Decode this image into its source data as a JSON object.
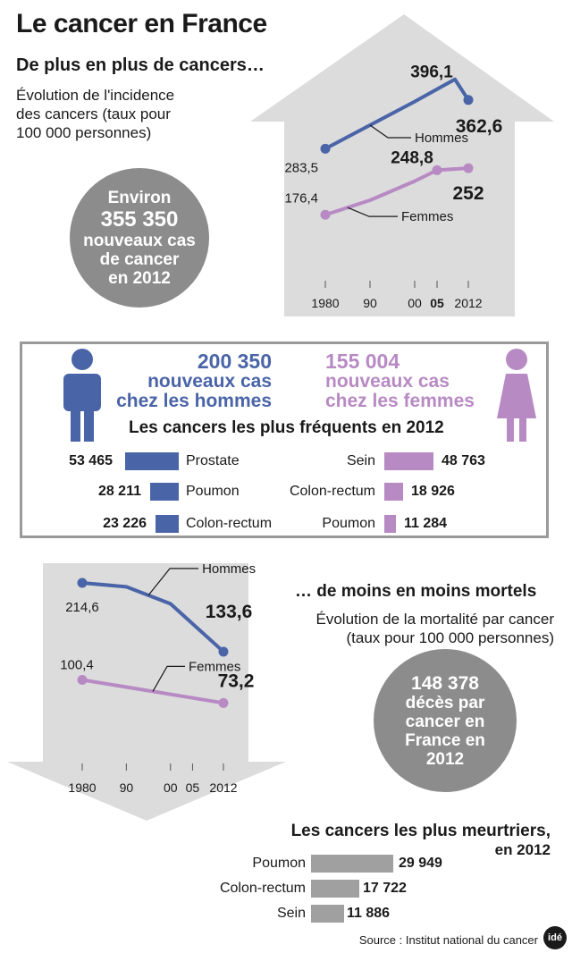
{
  "header": {
    "title": "Le cancer en France",
    "subtitle": "De plus en plus de cancers…",
    "description_lines": [
      "Évolution de l'incidence",
      "des cancers (taux pour",
      "100 000 personnes)"
    ]
  },
  "bubble_new_cases": {
    "lines": [
      "Environ",
      "355 350",
      "nouveaux cas",
      "de cancer",
      "en 2012"
    ]
  },
  "gender_split": {
    "men": {
      "count": "200 350",
      "line1": "nouveaux cas",
      "line2": "chez les hommes"
    },
    "women": {
      "count": "155 004",
      "line1": "nouveaux cas",
      "line2": "chez les femmes"
    }
  },
  "frequent": {
    "title": "Les cancers les plus fréquents en 2012",
    "men": [
      {
        "label": "Prostate",
        "value": 53465,
        "display": "53 465"
      },
      {
        "label": "Poumon",
        "value": 28211,
        "display": "28 211"
      },
      {
        "label": "Colon-rectum",
        "value": 23226,
        "display": "23 226"
      }
    ],
    "women": [
      {
        "label": "Sein",
        "value": 48763,
        "display": "48 763"
      },
      {
        "label": "Colon-rectum",
        "value": 18926,
        "display": "18 926"
      },
      {
        "label": "Poumon",
        "value": 11284,
        "display": "11 284"
      }
    ]
  },
  "mortality_text": {
    "subtitle": "… de moins en moins mortels",
    "description_lines": [
      "Évolution de la mortalité par cancer",
      "(taux pour 100 000 personnes)"
    ]
  },
  "bubble_deaths": {
    "lines": [
      "148 378",
      "décès par",
      "cancer en",
      "France en",
      "2012"
    ]
  },
  "deadliest": {
    "title_line1": "Les cancers les plus meurtriers,",
    "title_line2": "en 2012",
    "items": [
      {
        "label": "Poumon",
        "value": 29949,
        "display": "29 949"
      },
      {
        "label": "Colon-rectum",
        "value": 17722,
        "display": "17 722"
      },
      {
        "label": "Sein",
        "value": 11886,
        "display": "11 886"
      }
    ]
  },
  "source": "Source : Institut national du cancer",
  "logo_text": "idé",
  "colors": {
    "men": "#4a64a8",
    "women": "#b88ac4",
    "arrow": "#dcdcdc",
    "bubble": "#8c8c8c",
    "bar_gray": "#a0a0a0"
  },
  "chart_data": [
    {
      "type": "line",
      "ylabel": "",
      "x_ticks": [
        "1980",
        "90",
        "00",
        "05",
        "2012"
      ],
      "x_tick_values": [
        1980,
        1990,
        2000,
        2005,
        2012
      ],
      "series": [
        {
          "name": "Hommes",
          "x": [
            1980,
            2000,
            2005,
            2009,
            2012
          ],
          "values": [
            283.5,
            360,
            380,
            396.1,
            362.6
          ],
          "start_label": "283,5",
          "peak_label": "396,1",
          "end_label": "362,6"
        },
        {
          "name": "Femmes",
          "x": [
            1980,
            1990,
            2000,
            2005,
            2012
          ],
          "values": [
            176.4,
            200,
            231,
            248.8,
            252
          ],
          "start_label": "176,4",
          "mid_label": "248,8",
          "end_label": "252"
        }
      ]
    },
    {
      "type": "line",
      "ylabel": "",
      "x_ticks": [
        "1980",
        "90",
        "00",
        "05",
        "2012"
      ],
      "x_tick_values": [
        1980,
        1990,
        2000,
        2005,
        2012
      ],
      "series": [
        {
          "name": "Hommes",
          "x": [
            1980,
            1990,
            2000,
            2012
          ],
          "values": [
            214.6,
            210,
            190,
            133.6
          ],
          "start_label": "214,6",
          "end_label": "133,6"
        },
        {
          "name": "Femmes",
          "x": [
            1980,
            2012
          ],
          "values": [
            100.4,
            73.2
          ],
          "start_label": "100,4",
          "end_label": "73,2"
        }
      ]
    },
    {
      "type": "bar",
      "title": "Les cancers les plus fréquents en 2012",
      "categories": [
        "Prostate",
        "Poumon",
        "Colon-rectum",
        "Sein",
        "Colon-rectum",
        "Poumon"
      ],
      "series": [
        {
          "name": "",
          "values": [
            53465,
            28211,
            23226,
            null,
            null,
            null
          ]
        },
        {
          "name": "",
          "values": [
            null,
            null,
            null,
            48763,
            18926,
            11284
          ]
        }
      ]
    },
    {
      "type": "bar",
      "title": "Les cancers les plus meurtriers, en 2012",
      "categories": [
        "Poumon",
        "Colon-rectum",
        "Sein"
      ],
      "values": [
        29949,
        17722,
        11886
      ]
    }
  ]
}
